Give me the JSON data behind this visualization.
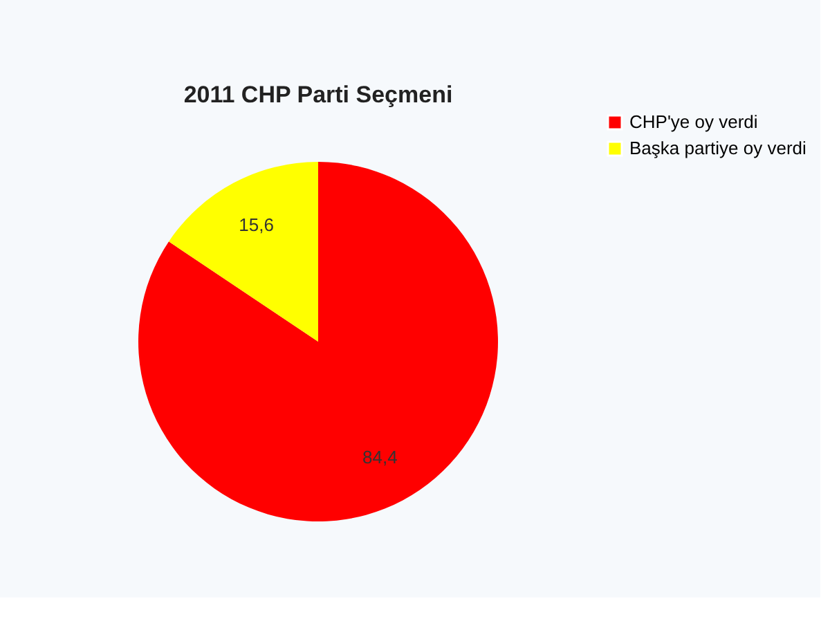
{
  "chart_data": {
    "type": "pie",
    "title": "2011 CHP Parti Seçmeni",
    "categories": [
      "CHP'ye oy verdi",
      "Başka partiye oy verdi"
    ],
    "values": [
      84.4,
      15.6
    ],
    "colors": [
      "#ff0000",
      "#ffff00"
    ],
    "value_labels": [
      "84,4",
      "15,6"
    ],
    "legend": "right"
  }
}
